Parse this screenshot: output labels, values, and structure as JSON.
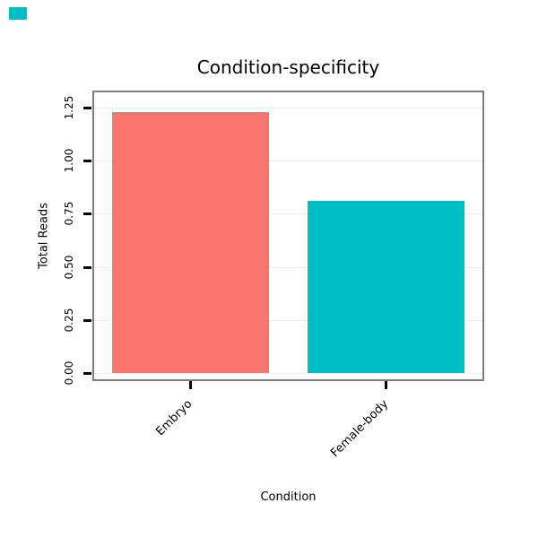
{
  "page": {
    "background": "#ffffff",
    "corner_mark_color": "#00BFC4"
  },
  "chart_data": {
    "type": "bar",
    "title": "Condition-specificity",
    "xlabel": "Condition",
    "ylabel": "Total Reads",
    "categories": [
      "Embryo",
      "Female-body"
    ],
    "values": [
      1.23,
      0.81
    ],
    "bar_colors": [
      "#F8766D",
      "#00BFC4"
    ],
    "yticks": [
      0,
      0.25,
      0.5,
      0.75,
      1.0,
      1.25
    ],
    "ytick_labels": [
      "0.00",
      "0.25",
      "0.50",
      "0.75",
      "1.00",
      "1.25"
    ],
    "ylim": [
      0,
      1.25
    ],
    "grid": "horizontal major gridlines, light gray",
    "grid_color": "#ededed",
    "panel_border_color": "#7f7f7f",
    "tick_color": "#000000",
    "text_color": "#000000",
    "legend_position": "none"
  }
}
